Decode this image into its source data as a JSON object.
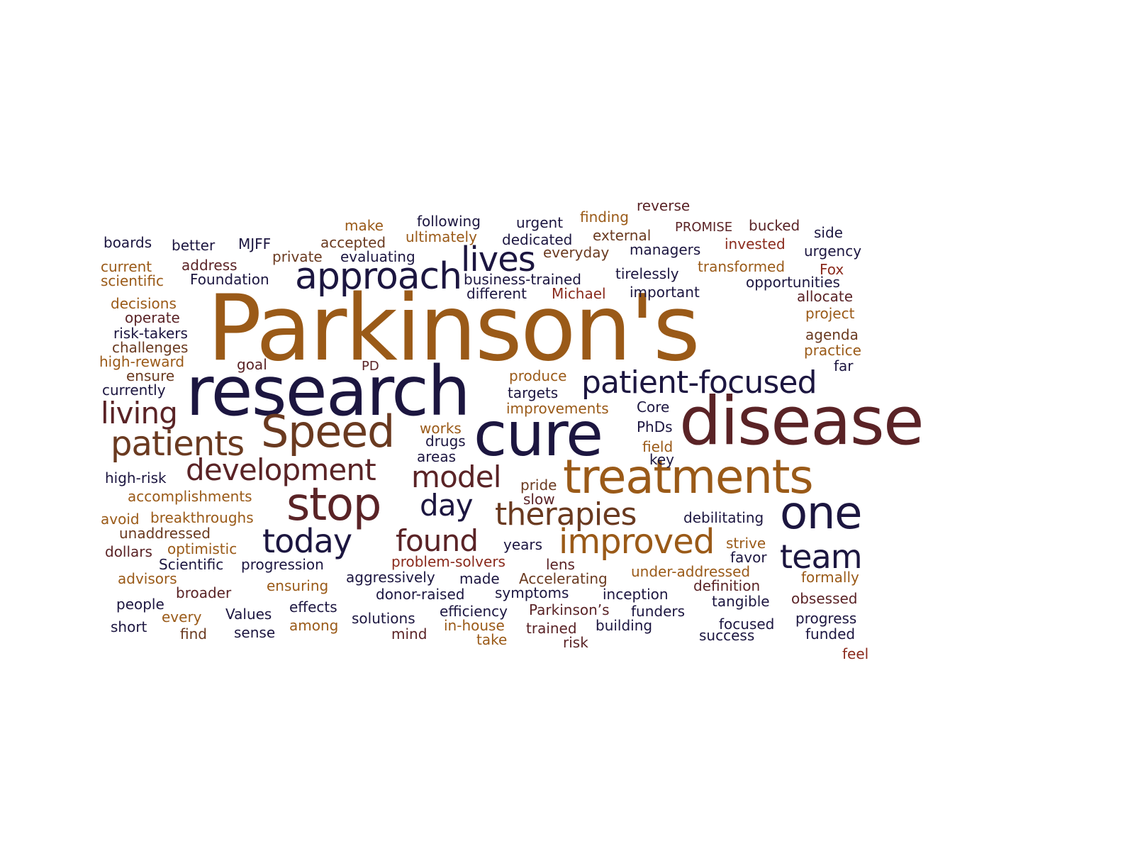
{
  "palette": {
    "orange": "#9a5a18",
    "navy": "#1c1640",
    "maroon": "#5a2326",
    "brown": "#6a3a20",
    "red": "#8a2a1c"
  },
  "words": [
    {
      "text": "Parkinson's",
      "color": "orange"
    },
    {
      "text": "disease",
      "color": "maroon"
    },
    {
      "text": "research",
      "color": "navy"
    },
    {
      "text": "cure",
      "color": "navy"
    },
    {
      "text": "treatments",
      "color": "orange"
    },
    {
      "text": "Speed",
      "color": "brown"
    },
    {
      "text": "stop",
      "color": "maroon"
    },
    {
      "text": "approach",
      "color": "navy"
    },
    {
      "text": "development",
      "color": "maroon"
    },
    {
      "text": "patients",
      "color": "brown"
    },
    {
      "text": "one",
      "color": "navy"
    },
    {
      "text": "patient-focused",
      "color": "navy"
    },
    {
      "text": "improved",
      "color": "orange"
    },
    {
      "text": "model",
      "color": "maroon"
    },
    {
      "text": "therapies",
      "color": "brown"
    },
    {
      "text": "team",
      "color": "navy"
    },
    {
      "text": "lives",
      "color": "navy"
    },
    {
      "text": "living",
      "color": "maroon"
    },
    {
      "text": "today",
      "color": "navy"
    },
    {
      "text": "found",
      "color": "maroon"
    },
    {
      "text": "day",
      "color": "navy"
    },
    {
      "text": "boards",
      "color": "navy"
    },
    {
      "text": "better",
      "color": "navy"
    },
    {
      "text": "MJFF",
      "color": "navy"
    },
    {
      "text": "make",
      "color": "orange"
    },
    {
      "text": "following",
      "color": "navy"
    },
    {
      "text": "urgent",
      "color": "navy"
    },
    {
      "text": "finding",
      "color": "orange"
    },
    {
      "text": "reverse",
      "color": "maroon"
    },
    {
      "text": "PROMISE",
      "color": "maroon"
    },
    {
      "text": "bucked",
      "color": "maroon"
    },
    {
      "text": "side",
      "color": "navy"
    },
    {
      "text": "accepted",
      "color": "brown"
    },
    {
      "text": "ultimately",
      "color": "orange"
    },
    {
      "text": "dedicated",
      "color": "navy"
    },
    {
      "text": "external",
      "color": "brown"
    },
    {
      "text": "invested",
      "color": "red"
    },
    {
      "text": "urgency",
      "color": "navy"
    },
    {
      "text": "private",
      "color": "brown"
    },
    {
      "text": "evaluating",
      "color": "navy"
    },
    {
      "text": "everyday",
      "color": "brown"
    },
    {
      "text": "managers",
      "color": "navy"
    },
    {
      "text": "current",
      "color": "orange"
    },
    {
      "text": "address",
      "color": "maroon"
    },
    {
      "text": "transformed",
      "color": "orange"
    },
    {
      "text": "Fox",
      "color": "red"
    },
    {
      "text": "scientific",
      "color": "orange"
    },
    {
      "text": "Foundation",
      "color": "navy"
    },
    {
      "text": "business-trained",
      "color": "navy"
    },
    {
      "text": "tirelessly",
      "color": "navy"
    },
    {
      "text": "opportunities",
      "color": "navy"
    },
    {
      "text": "different",
      "color": "navy"
    },
    {
      "text": "Michael",
      "color": "red"
    },
    {
      "text": "important",
      "color": "navy"
    },
    {
      "text": "allocate",
      "color": "maroon"
    },
    {
      "text": "decisions",
      "color": "orange"
    },
    {
      "text": "operate",
      "color": "maroon"
    },
    {
      "text": "project",
      "color": "orange"
    },
    {
      "text": "risk-takers",
      "color": "navy"
    },
    {
      "text": "agenda",
      "color": "brown"
    },
    {
      "text": "challenges",
      "color": "brown"
    },
    {
      "text": "practice",
      "color": "orange"
    },
    {
      "text": "high-reward",
      "color": "orange"
    },
    {
      "text": "goal",
      "color": "maroon"
    },
    {
      "text": "PD",
      "color": "maroon"
    },
    {
      "text": "far",
      "color": "navy"
    },
    {
      "text": "ensure",
      "color": "brown"
    },
    {
      "text": "produce",
      "color": "orange"
    },
    {
      "text": "currently",
      "color": "navy"
    },
    {
      "text": "targets",
      "color": "navy"
    },
    {
      "text": "improvements",
      "color": "orange"
    },
    {
      "text": "Core",
      "color": "navy"
    },
    {
      "text": "works",
      "color": "orange"
    },
    {
      "text": "PhDs",
      "color": "navy"
    },
    {
      "text": "drugs",
      "color": "navy"
    },
    {
      "text": "field",
      "color": "orange"
    },
    {
      "text": "areas",
      "color": "navy"
    },
    {
      "text": "key",
      "color": "navy"
    },
    {
      "text": "high-risk",
      "color": "navy"
    },
    {
      "text": "pride",
      "color": "brown"
    },
    {
      "text": "accomplishments",
      "color": "orange"
    },
    {
      "text": "slow",
      "color": "maroon"
    },
    {
      "text": "avoid",
      "color": "orange"
    },
    {
      "text": "breakthroughs",
      "color": "orange"
    },
    {
      "text": "debilitating",
      "color": "navy"
    },
    {
      "text": "unaddressed",
      "color": "brown"
    },
    {
      "text": "dollars",
      "color": "maroon"
    },
    {
      "text": "optimistic",
      "color": "orange"
    },
    {
      "text": "years",
      "color": "navy"
    },
    {
      "text": "strive",
      "color": "orange"
    },
    {
      "text": "favor",
      "color": "navy"
    },
    {
      "text": "Scientific",
      "color": "navy"
    },
    {
      "text": "progression",
      "color": "navy"
    },
    {
      "text": "problem-solvers",
      "color": "red"
    },
    {
      "text": "lens",
      "color": "maroon"
    },
    {
      "text": "under-addressed",
      "color": "orange"
    },
    {
      "text": "advisors",
      "color": "orange"
    },
    {
      "text": "aggressively",
      "color": "navy"
    },
    {
      "text": "made",
      "color": "navy"
    },
    {
      "text": "Accelerating",
      "color": "brown"
    },
    {
      "text": "formally",
      "color": "orange"
    },
    {
      "text": "broader",
      "color": "maroon"
    },
    {
      "text": "ensuring",
      "color": "orange"
    },
    {
      "text": "donor-raised",
      "color": "navy"
    },
    {
      "text": "symptoms",
      "color": "navy"
    },
    {
      "text": "inception",
      "color": "navy"
    },
    {
      "text": "definition",
      "color": "maroon"
    },
    {
      "text": "obsessed",
      "color": "maroon"
    },
    {
      "text": "people",
      "color": "navy"
    },
    {
      "text": "effects",
      "color": "navy"
    },
    {
      "text": "tangible",
      "color": "navy"
    },
    {
      "text": "every",
      "color": "orange"
    },
    {
      "text": "Values",
      "color": "navy"
    },
    {
      "text": "efficiency",
      "color": "navy"
    },
    {
      "text": "Parkinson’s",
      "color": "maroon"
    },
    {
      "text": "funders",
      "color": "navy"
    },
    {
      "text": "progress",
      "color": "navy"
    },
    {
      "text": "short",
      "color": "navy"
    },
    {
      "text": "solutions",
      "color": "navy"
    },
    {
      "text": "focused",
      "color": "navy"
    },
    {
      "text": "find",
      "color": "brown"
    },
    {
      "text": "sense",
      "color": "navy"
    },
    {
      "text": "among",
      "color": "orange"
    },
    {
      "text": "mind",
      "color": "maroon"
    },
    {
      "text": "in-house",
      "color": "orange"
    },
    {
      "text": "trained",
      "color": "maroon"
    },
    {
      "text": "building",
      "color": "navy"
    },
    {
      "text": "success",
      "color": "navy"
    },
    {
      "text": "funded",
      "color": "navy"
    },
    {
      "text": "take",
      "color": "orange"
    },
    {
      "text": "risk",
      "color": "maroon"
    },
    {
      "text": "feel",
      "color": "red"
    }
  ]
}
